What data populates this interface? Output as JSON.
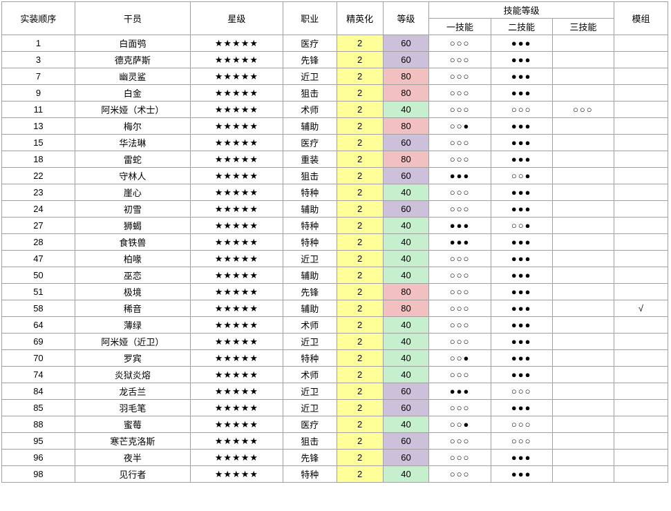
{
  "headers": {
    "order": "实装顺序",
    "operator": "干员",
    "rarity": "星级",
    "class": "职业",
    "elite": "精英化",
    "level": "等级",
    "skill_group": "技能等级",
    "skill1": "一技能",
    "skill2": "二技能",
    "skill3": "三技能",
    "module": "模组"
  },
  "colors": {
    "elite_bg": "#ffff99",
    "level_40": "#c6efce",
    "level_60": "#ccc0da",
    "level_80": "#f2c0c0",
    "border": "#a0a0a0",
    "bg": "#ffffff"
  },
  "glyphs": {
    "star": "★",
    "empty_circle": "○",
    "filled_circle": "●",
    "check": "√"
  },
  "rows": [
    {
      "order": "1",
      "name": "白面鸮",
      "stars": 5,
      "class": "医疗",
      "elite": "2",
      "level": 60,
      "s1": "eee",
      "s2": "fff",
      "s3": "",
      "mod": ""
    },
    {
      "order": "3",
      "name": "德克萨斯",
      "stars": 5,
      "class": "先锋",
      "elite": "2",
      "level": 60,
      "s1": "eee",
      "s2": "fff",
      "s3": "",
      "mod": ""
    },
    {
      "order": "7",
      "name": "幽灵鲨",
      "stars": 5,
      "class": "近卫",
      "elite": "2",
      "level": 80,
      "s1": "eee",
      "s2": "fff",
      "s3": "",
      "mod": ""
    },
    {
      "order": "9",
      "name": "白金",
      "stars": 5,
      "class": "狙击",
      "elite": "2",
      "level": 80,
      "s1": "eee",
      "s2": "fff",
      "s3": "",
      "mod": ""
    },
    {
      "order": "11",
      "name": "阿米娅（术士）",
      "stars": 5,
      "class": "术师",
      "elite": "2",
      "level": 40,
      "s1": "eee",
      "s2": "eee",
      "s3": "eee",
      "mod": ""
    },
    {
      "order": "13",
      "name": "梅尔",
      "stars": 5,
      "class": "辅助",
      "elite": "2",
      "level": 80,
      "s1": "eef",
      "s2": "fff",
      "s3": "",
      "mod": ""
    },
    {
      "order": "15",
      "name": "华法琳",
      "stars": 5,
      "class": "医疗",
      "elite": "2",
      "level": 60,
      "s1": "eee",
      "s2": "fff",
      "s3": "",
      "mod": ""
    },
    {
      "order": "18",
      "name": "雷蛇",
      "stars": 5,
      "class": "重装",
      "elite": "2",
      "level": 80,
      "s1": "eee",
      "s2": "fff",
      "s3": "",
      "mod": ""
    },
    {
      "order": "22",
      "name": "守林人",
      "stars": 5,
      "class": "狙击",
      "elite": "2",
      "level": 60,
      "s1": "fff",
      "s2": "eef",
      "s3": "",
      "mod": ""
    },
    {
      "order": "23",
      "name": "崖心",
      "stars": 5,
      "class": "特种",
      "elite": "2",
      "level": 40,
      "s1": "eee",
      "s2": "fff",
      "s3": "",
      "mod": ""
    },
    {
      "order": "24",
      "name": "初雪",
      "stars": 5,
      "class": "辅助",
      "elite": "2",
      "level": 60,
      "s1": "eee",
      "s2": "fff",
      "s3": "",
      "mod": ""
    },
    {
      "order": "27",
      "name": "狮蝎",
      "stars": 5,
      "class": "特种",
      "elite": "2",
      "level": 40,
      "s1": "fff",
      "s2": "eef",
      "s3": "",
      "mod": ""
    },
    {
      "order": "28",
      "name": "食铁兽",
      "stars": 5,
      "class": "特种",
      "elite": "2",
      "level": 40,
      "s1": "fff",
      "s2": "fff",
      "s3": "",
      "mod": ""
    },
    {
      "order": "47",
      "name": "柏喙",
      "stars": 5,
      "class": "近卫",
      "elite": "2",
      "level": 40,
      "s1": "eee",
      "s2": "fff",
      "s3": "",
      "mod": ""
    },
    {
      "order": "50",
      "name": "巫恋",
      "stars": 5,
      "class": "辅助",
      "elite": "2",
      "level": 40,
      "s1": "eee",
      "s2": "fff",
      "s3": "",
      "mod": ""
    },
    {
      "order": "51",
      "name": "极境",
      "stars": 5,
      "class": "先锋",
      "elite": "2",
      "level": 80,
      "s1": "eee",
      "s2": "fff",
      "s3": "",
      "mod": ""
    },
    {
      "order": "58",
      "name": "稀音",
      "stars": 5,
      "class": "辅助",
      "elite": "2",
      "level": 80,
      "s1": "eee",
      "s2": "fff",
      "s3": "",
      "mod": "√"
    },
    {
      "order": "64",
      "name": "薄绿",
      "stars": 5,
      "class": "术师",
      "elite": "2",
      "level": 40,
      "s1": "eee",
      "s2": "fff",
      "s3": "",
      "mod": ""
    },
    {
      "order": "69",
      "name": "阿米娅（近卫）",
      "stars": 5,
      "class": "近卫",
      "elite": "2",
      "level": 40,
      "s1": "eee",
      "s2": "fff",
      "s3": "",
      "mod": ""
    },
    {
      "order": "70",
      "name": "罗宾",
      "stars": 5,
      "class": "特种",
      "elite": "2",
      "level": 40,
      "s1": "eef",
      "s2": "fff",
      "s3": "",
      "mod": ""
    },
    {
      "order": "74",
      "name": "炎狱炎熔",
      "stars": 5,
      "class": "术师",
      "elite": "2",
      "level": 40,
      "s1": "eee",
      "s2": "fff",
      "s3": "",
      "mod": ""
    },
    {
      "order": "84",
      "name": "龙舌兰",
      "stars": 5,
      "class": "近卫",
      "elite": "2",
      "level": 60,
      "s1": "fff",
      "s2": "eee",
      "s3": "",
      "mod": ""
    },
    {
      "order": "85",
      "name": "羽毛笔",
      "stars": 5,
      "class": "近卫",
      "elite": "2",
      "level": 60,
      "s1": "eee",
      "s2": "fff",
      "s3": "",
      "mod": ""
    },
    {
      "order": "88",
      "name": "蜜莓",
      "stars": 5,
      "class": "医疗",
      "elite": "2",
      "level": 40,
      "s1": "eef",
      "s2": "eee",
      "s3": "",
      "mod": ""
    },
    {
      "order": "95",
      "name": "寒芒克洛斯",
      "stars": 5,
      "class": "狙击",
      "elite": "2",
      "level": 60,
      "s1": "eee",
      "s2": "eee",
      "s3": "",
      "mod": ""
    },
    {
      "order": "96",
      "name": "夜半",
      "stars": 5,
      "class": "先锋",
      "elite": "2",
      "level": 60,
      "s1": "eee",
      "s2": "fff",
      "s3": "",
      "mod": ""
    },
    {
      "order": "98",
      "name": "见行者",
      "stars": 5,
      "class": "特种",
      "elite": "2",
      "level": 40,
      "s1": "eee",
      "s2": "fff",
      "s3": "",
      "mod": ""
    }
  ]
}
